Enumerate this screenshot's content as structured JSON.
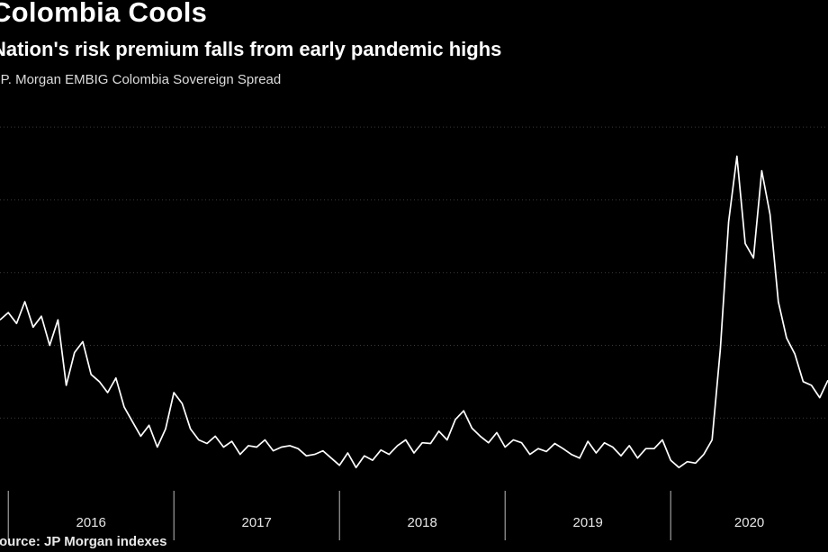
{
  "title": "Colombia Cools",
  "subtitle": "Nation's risk premium falls from early pandemic highs",
  "legend": "J.P. Morgan EMBIG Colombia Sovereign Spread",
  "source": "Source: JP Morgan indexes",
  "chart_data": {
    "type": "line",
    "title": "Colombia Cools",
    "subtitle": "Nation's risk premium falls from early pandemic highs",
    "series": [
      {
        "name": "J.P. Morgan EMBIG Colombia Sovereign Spread",
        "x": [
          2015.95,
          2016.0,
          2016.05,
          2016.1,
          2016.15,
          2016.2,
          2016.25,
          2016.3,
          2016.35,
          2016.4,
          2016.45,
          2016.5,
          2016.55,
          2016.6,
          2016.65,
          2016.7,
          2016.75,
          2016.8,
          2016.85,
          2016.9,
          2016.95,
          2017.0,
          2017.05,
          2017.1,
          2017.15,
          2017.2,
          2017.25,
          2017.3,
          2017.35,
          2017.4,
          2017.45,
          2017.5,
          2017.55,
          2017.6,
          2017.65,
          2017.7,
          2017.75,
          2017.8,
          2017.85,
          2017.9,
          2017.95,
          2018.0,
          2018.05,
          2018.1,
          2018.15,
          2018.2,
          2018.25,
          2018.3,
          2018.35,
          2018.4,
          2018.45,
          2018.5,
          2018.55,
          2018.6,
          2018.65,
          2018.7,
          2018.75,
          2018.8,
          2018.85,
          2018.9,
          2018.95,
          2019.0,
          2019.05,
          2019.1,
          2019.15,
          2019.2,
          2019.25,
          2019.3,
          2019.35,
          2019.4,
          2019.45,
          2019.5,
          2019.55,
          2019.6,
          2019.65,
          2019.7,
          2019.75,
          2019.8,
          2019.85,
          2019.9,
          2019.95,
          2020.0,
          2020.05,
          2020.1,
          2020.15,
          2020.2,
          2020.25,
          2020.3,
          2020.35,
          2020.4,
          2020.45,
          2020.5,
          2020.55,
          2020.6,
          2020.65,
          2020.7,
          2020.75,
          2020.8,
          2020.85,
          2020.9,
          2020.95
        ],
        "values": [
          335,
          345,
          330,
          360,
          325,
          340,
          300,
          335,
          245,
          290,
          305,
          260,
          250,
          235,
          255,
          215,
          195,
          175,
          190,
          160,
          185,
          235,
          220,
          185,
          170,
          165,
          175,
          160,
          168,
          150,
          162,
          160,
          170,
          155,
          160,
          162,
          158,
          148,
          150,
          155,
          145,
          135,
          152,
          132,
          148,
          142,
          156,
          150,
          162,
          170,
          152,
          166,
          165,
          182,
          170,
          198,
          210,
          186,
          175,
          166,
          180,
          160,
          170,
          166,
          150,
          158,
          154,
          165,
          158,
          150,
          145,
          168,
          152,
          166,
          160,
          148,
          162,
          145,
          158,
          158,
          170,
          142,
          132,
          140,
          138,
          150,
          170,
          295,
          470,
          560,
          440,
          420,
          540,
          480,
          360,
          310,
          288,
          250,
          245,
          228,
          252
        ]
      }
    ],
    "x_tick_labels": [
      "2016",
      "2017",
      "2018",
      "2019",
      "2020"
    ],
    "x_tick_boundaries": [
      2016.0,
      2017.0,
      2018.0,
      2019.0,
      2020.0,
      2021.0
    ],
    "xlim": [
      2015.95,
      2020.95
    ],
    "ylim": [
      100,
      620
    ],
    "grid": true
  }
}
